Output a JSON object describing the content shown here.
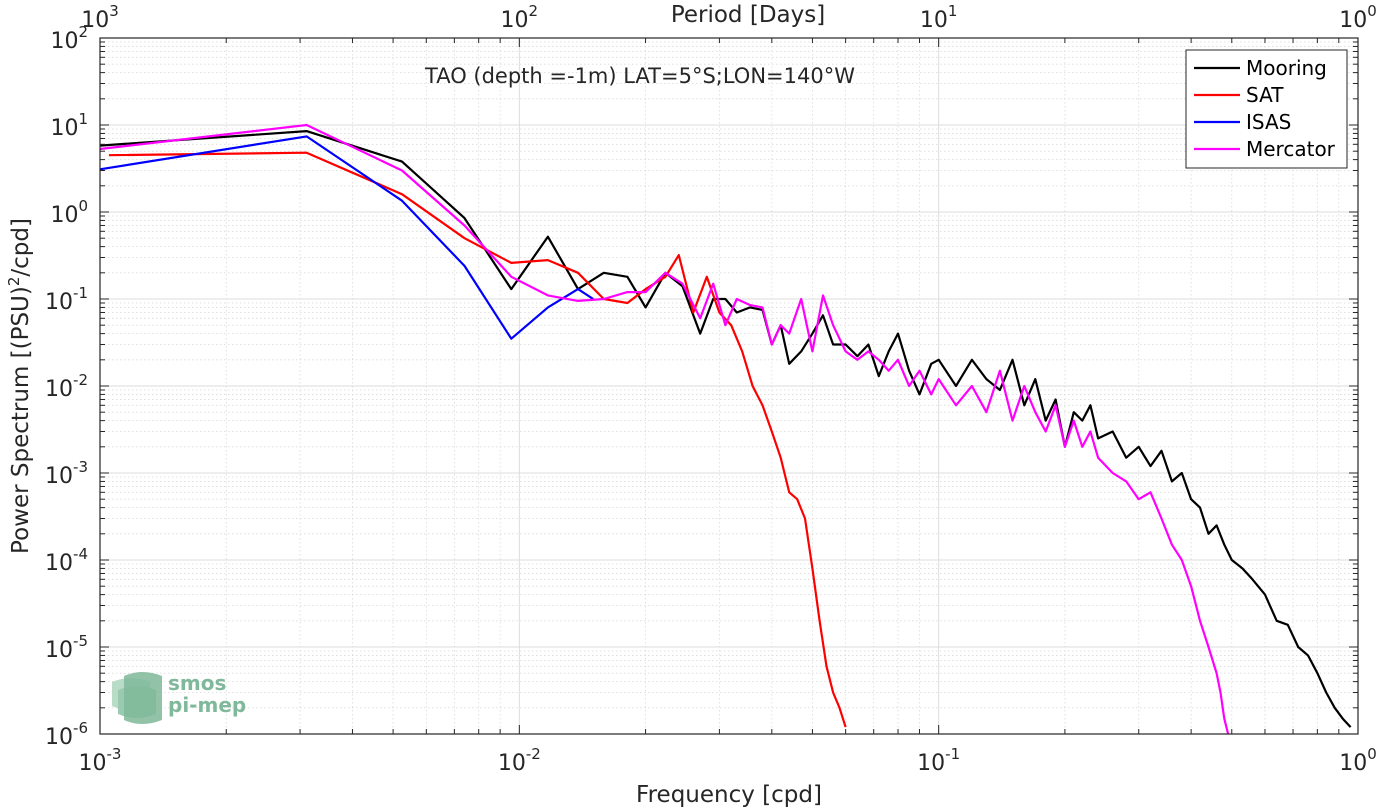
{
  "chart_data": {
    "type": "line",
    "title": "TAO (depth =-1m) LAT=5°S;LON=140°W",
    "xlabel": "Frequency [cpd]",
    "ylabel": "Power Spectrum [(PSU)²/cpd]",
    "ylabel_parts": {
      "pre": "Power Spectrum [(PSU)",
      "sup": "2",
      "post": "/cpd]"
    },
    "top_xlabel": "Period [Days]",
    "x_scale": "log",
    "y_scale": "log",
    "xlim": [
      0.001,
      1
    ],
    "ylim": [
      1e-06,
      100
    ],
    "grid": true,
    "legend_position": "top-right",
    "x_ticks": [
      {
        "base": "10",
        "exp": "-3",
        "value": 0.001
      },
      {
        "base": "10",
        "exp": "-2",
        "value": 0.01
      },
      {
        "base": "10",
        "exp": "-1",
        "value": 0.1
      },
      {
        "base": "10",
        "exp": "0",
        "value": 1
      }
    ],
    "top_ticks": [
      {
        "base": "10",
        "exp": "3",
        "value": 0.001
      },
      {
        "base": "10",
        "exp": "2",
        "value": 0.01
      },
      {
        "base": "10",
        "exp": "1",
        "value": 0.1
      },
      {
        "base": "10",
        "exp": "0",
        "value": 1
      }
    ],
    "y_ticks": [
      {
        "base": "10",
        "exp": "2",
        "value": 100
      },
      {
        "base": "10",
        "exp": "1",
        "value": 10
      },
      {
        "base": "10",
        "exp": "0",
        "value": 1
      },
      {
        "base": "10",
        "exp": "-1",
        "value": 0.1
      },
      {
        "base": "10",
        "exp": "-2",
        "value": 0.01
      },
      {
        "base": "10",
        "exp": "-3",
        "value": 0.001
      },
      {
        "base": "10",
        "exp": "-4",
        "value": 0.0001
      },
      {
        "base": "10",
        "exp": "-5",
        "value": 1e-05
      },
      {
        "base": "10",
        "exp": "-6",
        "value": 1e-06
      }
    ],
    "series": [
      {
        "name": "Mooring",
        "color": "#000000",
        "points": [
          [
            0.001,
            5.8
          ],
          [
            0.00311,
            8.5
          ],
          [
            0.00525,
            3.8
          ],
          [
            0.0074,
            0.85
          ],
          [
            0.00957,
            0.13
          ],
          [
            0.0117,
            0.52
          ],
          [
            0.0138,
            0.13
          ],
          [
            0.0159,
            0.2
          ],
          [
            0.0181,
            0.18
          ],
          [
            0.02,
            0.08
          ],
          [
            0.0223,
            0.2
          ],
          [
            0.0245,
            0.14
          ],
          [
            0.027,
            0.04
          ],
          [
            0.029,
            0.1
          ],
          [
            0.031,
            0.1
          ],
          [
            0.033,
            0.07
          ],
          [
            0.0355,
            0.08
          ],
          [
            0.038,
            0.075
          ],
          [
            0.04,
            0.03
          ],
          [
            0.042,
            0.05
          ],
          [
            0.044,
            0.018
          ],
          [
            0.047,
            0.025
          ],
          [
            0.05,
            0.04
          ],
          [
            0.053,
            0.065
          ],
          [
            0.056,
            0.03
          ],
          [
            0.06,
            0.03
          ],
          [
            0.064,
            0.022
          ],
          [
            0.068,
            0.03
          ],
          [
            0.072,
            0.013
          ],
          [
            0.076,
            0.025
          ],
          [
            0.08,
            0.04
          ],
          [
            0.085,
            0.015
          ],
          [
            0.09,
            0.008
          ],
          [
            0.096,
            0.018
          ],
          [
            0.1,
            0.02
          ],
          [
            0.11,
            0.01
          ],
          [
            0.12,
            0.02
          ],
          [
            0.13,
            0.012
          ],
          [
            0.14,
            0.009
          ],
          [
            0.15,
            0.02
          ],
          [
            0.16,
            0.006
          ],
          [
            0.17,
            0.012
          ],
          [
            0.18,
            0.004
          ],
          [
            0.19,
            0.007
          ],
          [
            0.2,
            0.002
          ],
          [
            0.21,
            0.005
          ],
          [
            0.22,
            0.004
          ],
          [
            0.23,
            0.006
          ],
          [
            0.24,
            0.0025
          ],
          [
            0.26,
            0.003
          ],
          [
            0.28,
            0.0015
          ],
          [
            0.3,
            0.002
          ],
          [
            0.32,
            0.0012
          ],
          [
            0.34,
            0.0018
          ],
          [
            0.36,
            0.0008
          ],
          [
            0.38,
            0.001
          ],
          [
            0.4,
            0.0005
          ],
          [
            0.42,
            0.0004
          ],
          [
            0.44,
            0.0002
          ],
          [
            0.46,
            0.00025
          ],
          [
            0.48,
            0.00015
          ],
          [
            0.5,
            0.0001
          ],
          [
            0.53,
            8e-05
          ],
          [
            0.56,
            6e-05
          ],
          [
            0.6,
            4e-05
          ],
          [
            0.64,
            2e-05
          ],
          [
            0.68,
            1.8e-05
          ],
          [
            0.72,
            1e-05
          ],
          [
            0.76,
            8e-06
          ],
          [
            0.8,
            5e-06
          ],
          [
            0.84,
            3e-06
          ],
          [
            0.88,
            2e-06
          ],
          [
            0.92,
            1.5e-06
          ],
          [
            0.96,
            1.2e-06
          ]
        ]
      },
      {
        "name": "SAT",
        "color": "#ff0000",
        "points": [
          [
            0.00105,
            4.5
          ],
          [
            0.00311,
            4.8
          ],
          [
            0.00525,
            1.6
          ],
          [
            0.0074,
            0.5
          ],
          [
            0.00957,
            0.26
          ],
          [
            0.0117,
            0.28
          ],
          [
            0.0138,
            0.2
          ],
          [
            0.0159,
            0.1
          ],
          [
            0.0181,
            0.09
          ],
          [
            0.02,
            0.13
          ],
          [
            0.0223,
            0.18
          ],
          [
            0.024,
            0.32
          ],
          [
            0.026,
            0.07
          ],
          [
            0.028,
            0.18
          ],
          [
            0.03,
            0.07
          ],
          [
            0.032,
            0.05
          ],
          [
            0.034,
            0.025
          ],
          [
            0.036,
            0.01
          ],
          [
            0.038,
            0.006
          ],
          [
            0.04,
            0.003
          ],
          [
            0.042,
            0.0015
          ],
          [
            0.044,
            0.0006
          ],
          [
            0.046,
            0.0005
          ],
          [
            0.048,
            0.0003
          ],
          [
            0.05,
            8e-05
          ],
          [
            0.052,
            2e-05
          ],
          [
            0.054,
            6e-06
          ],
          [
            0.056,
            3e-06
          ],
          [
            0.058,
            2e-06
          ],
          [
            0.06,
            1.2e-06
          ]
        ]
      },
      {
        "name": "ISAS",
        "color": "#0000ff",
        "points": [
          [
            0.001,
            3.1
          ],
          [
            0.00311,
            7.4
          ],
          [
            0.00525,
            1.35
          ],
          [
            0.0074,
            0.24
          ],
          [
            0.00957,
            0.035
          ],
          [
            0.0117,
            0.08
          ],
          [
            0.0138,
            0.13
          ],
          [
            0.015,
            0.1
          ]
        ]
      },
      {
        "name": "Mercator",
        "color": "#ff00ff",
        "points": [
          [
            0.001,
            5.3
          ],
          [
            0.00311,
            10.0
          ],
          [
            0.00525,
            3.0
          ],
          [
            0.0074,
            0.7
          ],
          [
            0.00957,
            0.18
          ],
          [
            0.0117,
            0.11
          ],
          [
            0.0138,
            0.095
          ],
          [
            0.0159,
            0.1
          ],
          [
            0.0181,
            0.12
          ],
          [
            0.02,
            0.12
          ],
          [
            0.0223,
            0.2
          ],
          [
            0.0245,
            0.15
          ],
          [
            0.027,
            0.06
          ],
          [
            0.029,
            0.15
          ],
          [
            0.031,
            0.05
          ],
          [
            0.033,
            0.1
          ],
          [
            0.0355,
            0.085
          ],
          [
            0.038,
            0.08
          ],
          [
            0.04,
            0.03
          ],
          [
            0.042,
            0.05
          ],
          [
            0.044,
            0.04
          ],
          [
            0.047,
            0.1
          ],
          [
            0.05,
            0.025
          ],
          [
            0.053,
            0.11
          ],
          [
            0.056,
            0.05
          ],
          [
            0.06,
            0.025
          ],
          [
            0.064,
            0.02
          ],
          [
            0.068,
            0.025
          ],
          [
            0.072,
            0.02
          ],
          [
            0.076,
            0.015
          ],
          [
            0.08,
            0.02
          ],
          [
            0.085,
            0.01
          ],
          [
            0.09,
            0.015
          ],
          [
            0.096,
            0.008
          ],
          [
            0.1,
            0.012
          ],
          [
            0.11,
            0.006
          ],
          [
            0.12,
            0.01
          ],
          [
            0.13,
            0.005
          ],
          [
            0.14,
            0.015
          ],
          [
            0.15,
            0.004
          ],
          [
            0.16,
            0.01
          ],
          [
            0.17,
            0.005
          ],
          [
            0.18,
            0.003
          ],
          [
            0.19,
            0.006
          ],
          [
            0.2,
            0.002
          ],
          [
            0.21,
            0.004
          ],
          [
            0.22,
            0.002
          ],
          [
            0.23,
            0.003
          ],
          [
            0.24,
            0.0015
          ],
          [
            0.26,
            0.001
          ],
          [
            0.28,
            0.0008
          ],
          [
            0.3,
            0.0005
          ],
          [
            0.32,
            0.0006
          ],
          [
            0.34,
            0.0003
          ],
          [
            0.36,
            0.00015
          ],
          [
            0.38,
            0.0001
          ],
          [
            0.4,
            5e-05
          ],
          [
            0.42,
            2e-05
          ],
          [
            0.44,
            1e-05
          ],
          [
            0.46,
            5e-06
          ],
          [
            0.47,
            3e-06
          ],
          [
            0.48,
            1.5e-06
          ],
          [
            0.49,
            1e-06
          ]
        ]
      }
    ]
  },
  "logo": {
    "line1": "smos",
    "line2": "pi-mep",
    "color": "#7fb89a"
  }
}
